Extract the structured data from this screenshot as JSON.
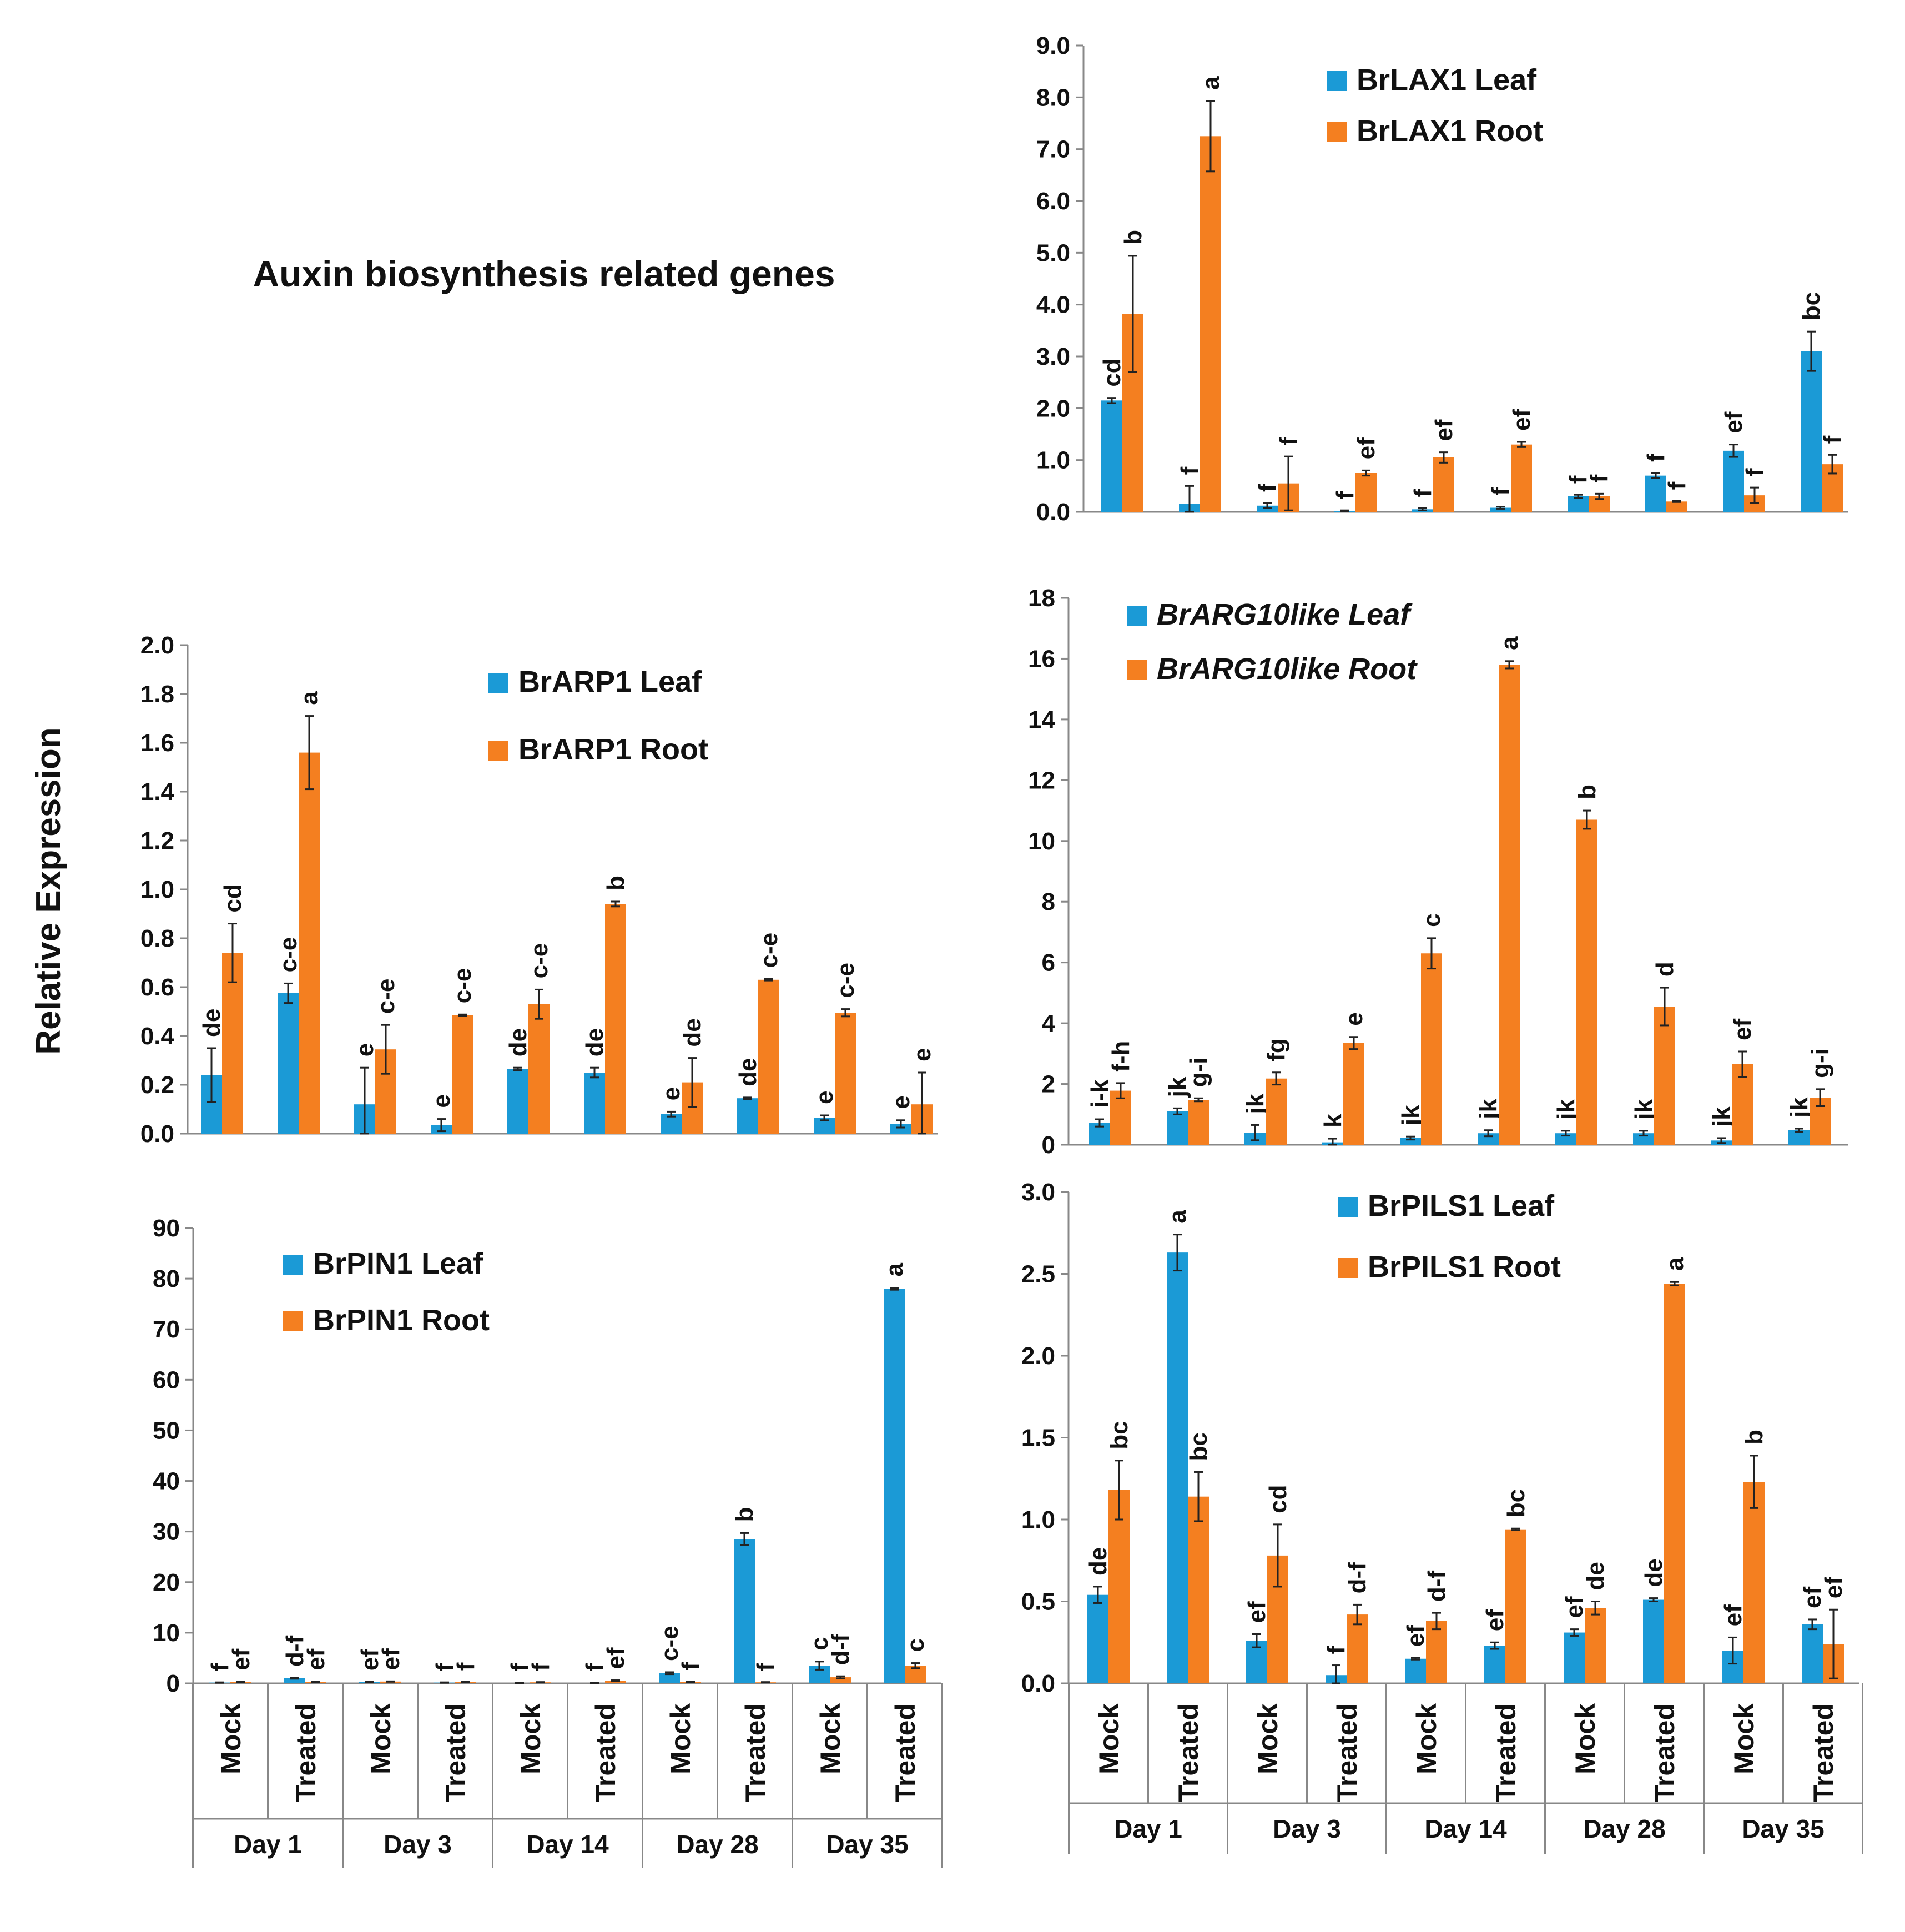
{
  "figure": {
    "title": "Auxin biosynthesis related genes",
    "y_label": "Relative Expression"
  },
  "chart_data": [
    {
      "id": "lax1",
      "type": "bar",
      "series": [
        {
          "name": "BrLAX1 Leaf",
          "color": "#1b9ad6",
          "values": [
            2.15,
            0.15,
            0.12,
            0.02,
            0.05,
            0.08,
            0.3,
            0.7,
            1.18,
            3.1
          ],
          "errors": [
            0.05,
            0.35,
            0.05,
            0.01,
            0.02,
            0.02,
            0.03,
            0.05,
            0.12,
            0.38
          ],
          "labels": [
            "cd",
            "f",
            "f",
            "f",
            "f",
            "f",
            "f",
            "f",
            "ef",
            "bc"
          ]
        },
        {
          "name": "BrLAX1 Root",
          "color": "#f47f20",
          "values": [
            3.82,
            7.25,
            0.55,
            0.75,
            1.05,
            1.3,
            0.3,
            0.2,
            0.32,
            0.92
          ],
          "errors": [
            1.12,
            0.68,
            0.52,
            0.05,
            0.1,
            0.05,
            0.05,
            0.01,
            0.15,
            0.18
          ],
          "labels": [
            "b",
            "a",
            "f",
            "ef",
            "ef",
            "ef",
            "f",
            "f",
            "f",
            "f"
          ]
        }
      ],
      "ylim": [
        0,
        9
      ],
      "yticks": [
        "0.0",
        "1.0",
        "2.0",
        "3.0",
        "4.0",
        "5.0",
        "6.0",
        "7.0",
        "8.0",
        "9.0"
      ]
    },
    {
      "id": "arp1",
      "type": "bar",
      "series": [
        {
          "name": "BrARP1 Leaf",
          "color": "#1b9ad6",
          "values": [
            0.24,
            0.575,
            0.12,
            0.035,
            0.265,
            0.25,
            0.08,
            0.145,
            0.065,
            0.04
          ],
          "errors": [
            0.11,
            0.04,
            0.15,
            0.025,
            0.005,
            0.02,
            0.01,
            0.003,
            0.01,
            0.015
          ],
          "labels": [
            "de",
            "c-e",
            "e",
            "e",
            "de",
            "de",
            "e",
            "de",
            "e",
            "e"
          ]
        },
        {
          "name": "BrARP1 Root",
          "color": "#f47f20",
          "values": [
            0.74,
            1.56,
            0.345,
            0.485,
            0.53,
            0.94,
            0.21,
            0.63,
            0.495,
            0.12
          ],
          "errors": [
            0.12,
            0.15,
            0.1,
            0.003,
            0.06,
            0.01,
            0.1,
            0.003,
            0.015,
            0.13
          ],
          "labels": [
            "cd",
            "a",
            "c-e",
            "c-e",
            "c-e",
            "b",
            "de",
            "c-e",
            "c-e",
            "e"
          ]
        }
      ],
      "ylim": [
        0,
        2
      ],
      "yticks": [
        "0.0",
        "0.2",
        "0.4",
        "0.6",
        "0.8",
        "1.0",
        "1.2",
        "1.4",
        "1.6",
        "1.8",
        "2.0"
      ]
    },
    {
      "id": "arg10",
      "type": "bar",
      "series": [
        {
          "name": "BrARG10like Leaf",
          "color": "#1b9ad6",
          "values": [
            0.72,
            1.1,
            0.4,
            0.08,
            0.22,
            0.38,
            0.38,
            0.38,
            0.14,
            0.48
          ],
          "errors": [
            0.12,
            0.1,
            0.25,
            0.12,
            0.05,
            0.1,
            0.08,
            0.08,
            0.08,
            0.05
          ],
          "labels": [
            "i-k",
            "jk",
            "jk",
            "k",
            "jk",
            "jk",
            "jk",
            "jk",
            "jk",
            "jk"
          ]
        },
        {
          "name": "BrARG10like Root",
          "color": "#f47f20",
          "values": [
            1.78,
            1.48,
            2.18,
            3.35,
            6.3,
            15.8,
            10.7,
            4.55,
            2.65,
            1.55
          ],
          "errors": [
            0.25,
            0.05,
            0.2,
            0.2,
            0.5,
            0.12,
            0.3,
            0.62,
            0.42,
            0.28
          ],
          "labels": [
            "f-h",
            "g-i",
            "fg",
            "e",
            "c",
            "a",
            "b",
            "d",
            "ef",
            "g-i"
          ]
        }
      ],
      "ylim": [
        0,
        18
      ],
      "yticks": [
        "0",
        "2",
        "4",
        "6",
        "8",
        "10",
        "12",
        "14",
        "16",
        "18"
      ]
    },
    {
      "id": "pin1",
      "type": "bar",
      "series": [
        {
          "name": "BrPIN1 Leaf",
          "color": "#1b9ad6",
          "values": [
            0.15,
            1.0,
            0.25,
            0.15,
            0.1,
            0.1,
            2.0,
            28.5,
            3.5,
            78.0
          ],
          "errors": [
            0.05,
            0.1,
            0.05,
            0.05,
            0.05,
            0.05,
            0.2,
            1.2,
            0.8,
            0.2
          ],
          "labels": [
            "f",
            "d-f",
            "ef",
            "f",
            "f",
            "f",
            "c-e",
            "b",
            "c",
            "a"
          ]
        },
        {
          "name": "BrPIN1 Root",
          "color": "#f47f20",
          "values": [
            0.3,
            0.3,
            0.35,
            0.25,
            0.2,
            0.5,
            0.3,
            0.2,
            1.2,
            3.5
          ],
          "errors": [
            0.05,
            0.05,
            0.05,
            0.05,
            0.05,
            0.1,
            0.05,
            0.05,
            0.2,
            0.5
          ],
          "labels": [
            "ef",
            "ef",
            "ef",
            "f",
            "f",
            "ef",
            "f",
            "f",
            "d-f",
            "c"
          ]
        }
      ],
      "ylim": [
        0,
        90
      ],
      "yticks": [
        "0",
        "10",
        "20",
        "30",
        "40",
        "50",
        "60",
        "70",
        "80",
        "90"
      ]
    },
    {
      "id": "pils1",
      "type": "bar",
      "series": [
        {
          "name": "BrPILS1 Leaf",
          "color": "#1b9ad6",
          "values": [
            0.54,
            2.63,
            0.26,
            0.05,
            0.15,
            0.23,
            0.31,
            0.51,
            0.2,
            0.36
          ],
          "errors": [
            0.05,
            0.11,
            0.04,
            0.06,
            0.005,
            0.02,
            0.02,
            0.01,
            0.08,
            0.03
          ],
          "labels": [
            "de",
            "a",
            "ef",
            "f",
            "ef",
            "ef",
            "ef",
            "de",
            "ef",
            "ef"
          ]
        },
        {
          "name": "BrPILS1 Root",
          "color": "#f47f20",
          "values": [
            1.18,
            1.14,
            0.78,
            0.42,
            0.38,
            0.94,
            0.46,
            2.44,
            1.23,
            0.24
          ],
          "errors": [
            0.18,
            0.15,
            0.19,
            0.06,
            0.05,
            0.005,
            0.04,
            0.01,
            0.16,
            0.21
          ],
          "labels": [
            "bc",
            "bc",
            "cd",
            "d-f",
            "d-f",
            "bc",
            "de",
            "a",
            "b",
            "ef"
          ]
        }
      ],
      "ylim": [
        0,
        3
      ],
      "yticks": [
        "0.0",
        "0.5",
        "1.0",
        "1.5",
        "2.0",
        "2.5",
        "3.0"
      ]
    }
  ],
  "x_axis": {
    "categories": [
      "Mock",
      "Treated",
      "Mock",
      "Treated",
      "Mock",
      "Treated",
      "Mock",
      "Treated",
      "Mock",
      "Treated"
    ],
    "groups": [
      "Day 1",
      "Day 3",
      "Day 14",
      "Day 28",
      "Day 35"
    ]
  }
}
